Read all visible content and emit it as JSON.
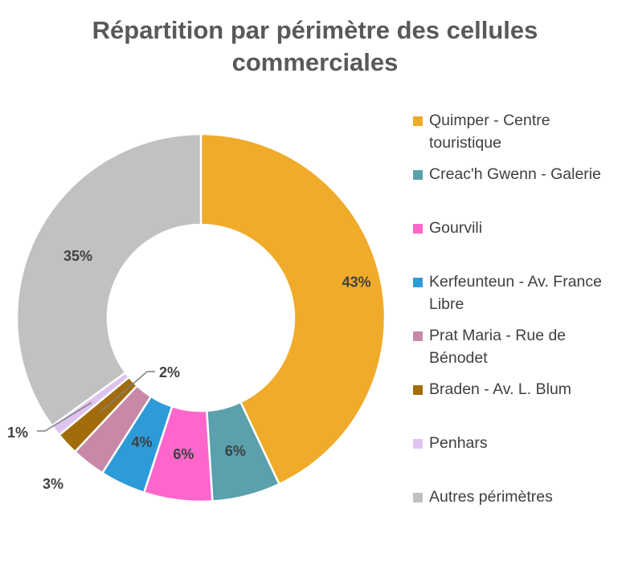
{
  "title_lines": [
    "Répartition par périmètre des cellules",
    "commerciales"
  ],
  "chart_data": {
    "type": "pie",
    "variant": "donut",
    "title": "Répartition par périmètre des cellules commerciales",
    "categories": [
      "Quimper - Centre touristique",
      "Creac'h Gwenn - Galerie",
      "Gourvili",
      "Kerfeunteun - Av. France Libre",
      "Prat Maria - Rue de Bénodet",
      "Braden - Av. L. Blum",
      "Penhars",
      "Autres périmètres"
    ],
    "values": [
      43,
      6,
      6,
      4,
      3,
      2,
      1,
      35
    ],
    "labels": [
      "43%",
      "6%",
      "6%",
      "4%",
      "3%",
      "2%",
      "1%",
      "35%"
    ],
    "colors": [
      "#F0AB2A",
      "#5AA0AD",
      "#FF66CC",
      "#2E9BD9",
      "#C888A8",
      "#A36C0A",
      "#DDC4EE",
      "#C1C1C1"
    ],
    "legend_position": "right"
  }
}
